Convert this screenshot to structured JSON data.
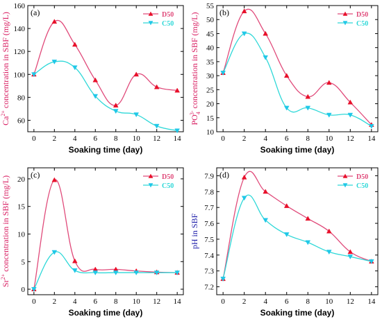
{
  "colors": {
    "D50": "#e04a7a",
    "C50": "#2ed8d8",
    "D50_marker": "#e8102a",
    "C50_marker": "#20c8e8",
    "ylabel_magenta": "#d81b60",
    "ylabel_blue": "#1a1aa8"
  },
  "chart_data": [
    {
      "type": "line",
      "panel_label": "(a)",
      "xlabel": "Soaking time (day)",
      "ylabel_parts": [
        "Ca",
        "2+",
        " concentration in SBF (mg/L)"
      ],
      "ylabel_color": "ylabel_magenta",
      "x": [
        0,
        2,
        4,
        6,
        8,
        10,
        12,
        14
      ],
      "xticks": [
        0,
        2,
        4,
        6,
        8,
        10,
        12,
        14
      ],
      "xlim": [
        -0.6,
        14.6
      ],
      "ylim": [
        50,
        160
      ],
      "yticks": [
        60,
        80,
        100,
        120,
        140,
        160
      ],
      "legend_position": "top-right",
      "series": [
        {
          "name": "D50",
          "values": [
            100,
            146,
            126,
            95,
            73,
            100,
            89,
            86
          ],
          "marker": "triangle-up"
        },
        {
          "name": "C50",
          "values": [
            100,
            111,
            106,
            81,
            68,
            65,
            55,
            51
          ],
          "marker": "triangle-down"
        }
      ]
    },
    {
      "type": "line",
      "panel_label": "(b)",
      "xlabel": "Soaking time (day)",
      "ylabel_parts": [
        "PO",
        "4",
        "3-",
        " concentration in SBF (mg/L)"
      ],
      "ylabel_color": "ylabel_magenta",
      "x": [
        0,
        2,
        4,
        6,
        8,
        10,
        12,
        14
      ],
      "xticks": [
        0,
        2,
        4,
        6,
        8,
        10,
        12,
        14
      ],
      "xlim": [
        -0.6,
        14.6
      ],
      "ylim": [
        10,
        55
      ],
      "yticks": [
        10,
        15,
        20,
        25,
        30,
        35,
        40,
        45,
        50,
        55
      ],
      "legend_position": "top-right",
      "series": [
        {
          "name": "D50",
          "values": [
            31,
            53,
            45,
            30,
            22.5,
            27.5,
            20.5,
            12.5
          ],
          "marker": "triangle-up"
        },
        {
          "name": "C50",
          "values": [
            31,
            45,
            36.5,
            18.5,
            18.5,
            16,
            16,
            12
          ],
          "marker": "triangle-down"
        }
      ]
    },
    {
      "type": "line",
      "panel_label": "(c)",
      "xlabel": "Soaking time (day)",
      "ylabel_parts": [
        "Sr",
        "2+",
        " concentration in SBF (mg/L)"
      ],
      "ylabel_color": "ylabel_magenta",
      "x": [
        0,
        2,
        4,
        6,
        8,
        10,
        12,
        14
      ],
      "xticks": [
        0,
        2,
        4,
        6,
        8,
        10,
        12,
        14
      ],
      "xlim": [
        -0.6,
        14.6
      ],
      "ylim": [
        -1,
        22
      ],
      "yticks": [
        0,
        5,
        10,
        15,
        20
      ],
      "legend_position": "top-right",
      "series": [
        {
          "name": "D50",
          "values": [
            0,
            19.8,
            5.1,
            3.6,
            3.6,
            3.3,
            3.1,
            3.0
          ],
          "marker": "triangle-up"
        },
        {
          "name": "C50",
          "values": [
            0,
            6.7,
            3.4,
            3.0,
            3.0,
            3.0,
            3.0,
            3.0
          ],
          "marker": "triangle-down"
        }
      ]
    },
    {
      "type": "line",
      "panel_label": "(d)",
      "xlabel": "Soaking time (day)",
      "ylabel_parts": [
        "pH in SBF"
      ],
      "ylabel_color": "ylabel_blue",
      "x": [
        0,
        2,
        4,
        6,
        8,
        10,
        12,
        14
      ],
      "xticks": [
        0,
        2,
        4,
        6,
        8,
        10,
        12,
        14
      ],
      "xlim": [
        -0.6,
        14.6
      ],
      "ylim": [
        7.15,
        7.95
      ],
      "yticks": [
        7.2,
        7.3,
        7.4,
        7.5,
        7.6,
        7.7,
        7.8,
        7.9
      ],
      "legend_position": "top-right",
      "series": [
        {
          "name": "D50",
          "values": [
            7.25,
            7.89,
            7.8,
            7.71,
            7.63,
            7.55,
            7.42,
            7.36
          ],
          "marker": "triangle-up"
        },
        {
          "name": "C50",
          "values": [
            7.25,
            7.76,
            7.62,
            7.53,
            7.48,
            7.42,
            7.39,
            7.36
          ],
          "marker": "triangle-down"
        }
      ]
    }
  ]
}
